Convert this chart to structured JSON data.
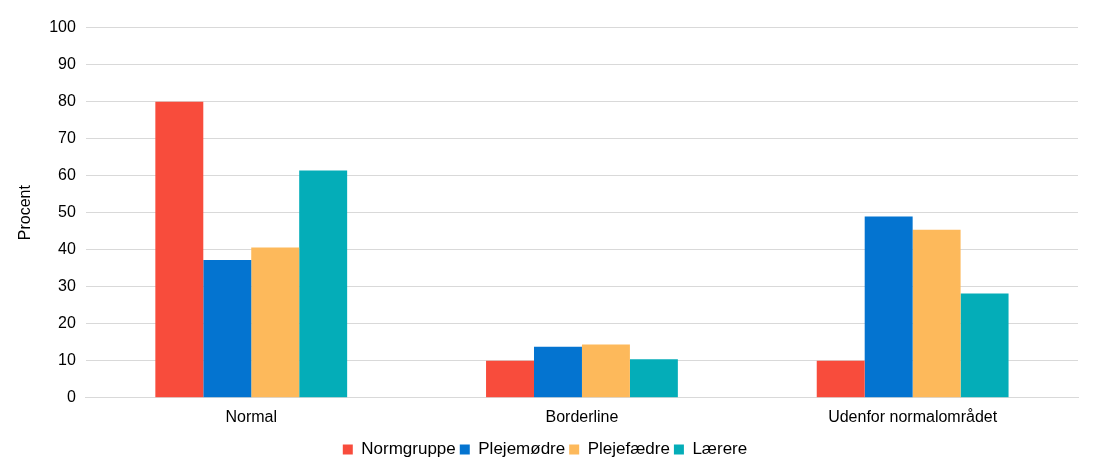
{
  "chart_data": {
    "type": "bar",
    "ylabel": "Procent",
    "categories": [
      "Normal",
      "Borderline",
      "Udenfor normalområdet"
    ],
    "series": [
      {
        "name": "Normgruppe",
        "color": "#f84c3c",
        "values": [
          80,
          10,
          10
        ]
      },
      {
        "name": "Plejemødre",
        "color": "#0474d0",
        "values": [
          37.2,
          13.8,
          49
        ]
      },
      {
        "name": "Plejefædre",
        "color": "#fdb95b",
        "values": [
          40.6,
          14.4,
          45.4
        ]
      },
      {
        "name": "Lærere",
        "color": "#04adb8",
        "values": [
          61.4,
          10.4,
          28.2
        ]
      }
    ],
    "ylim": [
      0,
      100
    ],
    "yticks": [
      0,
      10,
      20,
      30,
      40,
      50,
      60,
      70,
      80,
      90,
      100
    ],
    "grid": "y",
    "legend": "bottom"
  }
}
